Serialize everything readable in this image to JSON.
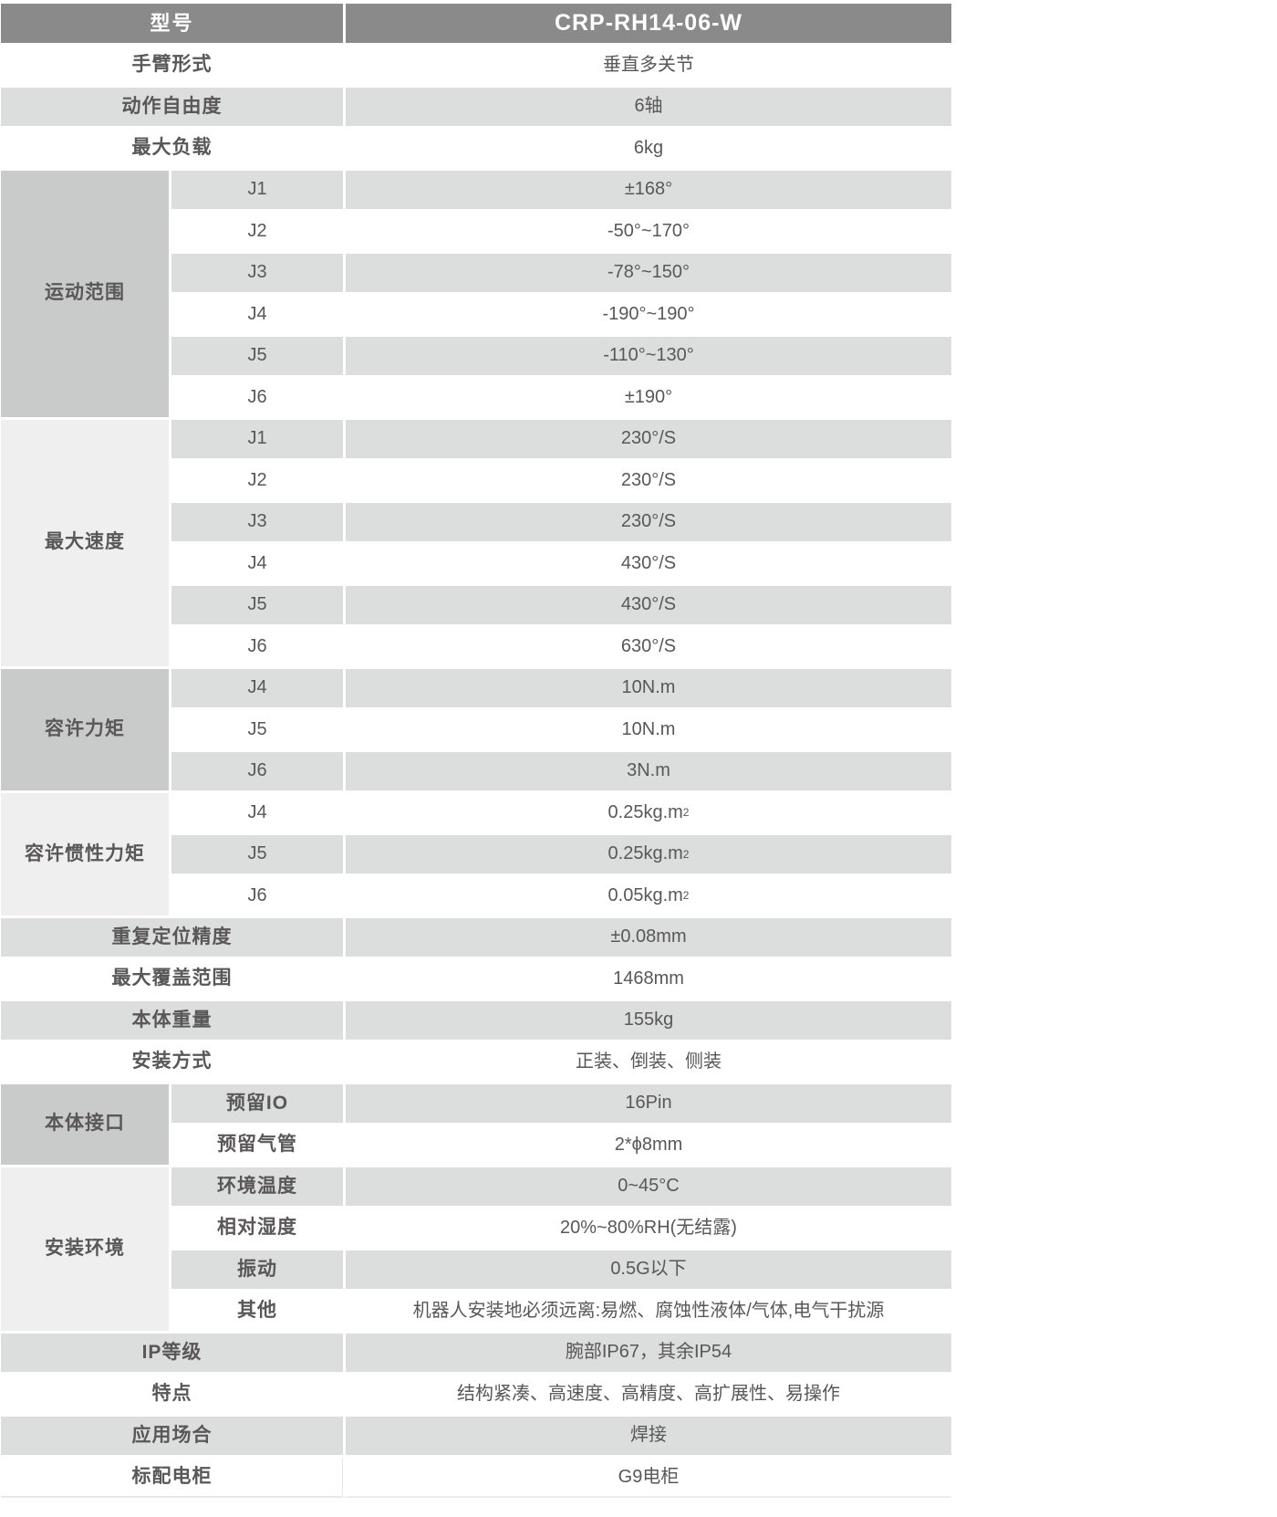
{
  "table": {
    "header": {
      "label": "型号",
      "value": "CRP-RH14-06-W"
    },
    "colors": {
      "header_bg": "#8a8a8a",
      "header_text": "#ffffff",
      "zebra_gray": "#dcdddd",
      "zebra_white": "#ffffff",
      "section_dark": "#c9caca",
      "section_light": "#efefef",
      "body_text": "#595757"
    },
    "rows": [
      {
        "type": "simple",
        "label": "手臂形式",
        "value": "垂直多关节"
      },
      {
        "type": "simple",
        "label": "动作自由度",
        "value": "6轴"
      },
      {
        "type": "simple",
        "label": "最大负载",
        "value": "6kg"
      },
      {
        "type": "section",
        "label": "运动范围",
        "shade": "dark",
        "subrows": [
          {
            "sub": "J1",
            "value": "±168°"
          },
          {
            "sub": "J2",
            "value": "-50°~170°"
          },
          {
            "sub": "J3",
            "value": "-78°~150°"
          },
          {
            "sub": "J4",
            "value": "-190°~190°"
          },
          {
            "sub": "J5",
            "value": "-110°~130°"
          },
          {
            "sub": "J6",
            "value": "±190°"
          }
        ]
      },
      {
        "type": "section",
        "label": "最大速度",
        "shade": "light",
        "subrows": [
          {
            "sub": "J1",
            "value": "230°/S"
          },
          {
            "sub": "J2",
            "value": "230°/S"
          },
          {
            "sub": "J3",
            "value": "230°/S"
          },
          {
            "sub": "J4",
            "value": "430°/S"
          },
          {
            "sub": "J5",
            "value": "430°/S"
          },
          {
            "sub": "J6",
            "value": "630°/S"
          }
        ]
      },
      {
        "type": "section",
        "label": "容许力矩",
        "shade": "dark",
        "subrows": [
          {
            "sub": "J4",
            "value": "10N.m"
          },
          {
            "sub": "J5",
            "value": "10N.m"
          },
          {
            "sub": "J6",
            "value": "3N.m"
          }
        ]
      },
      {
        "type": "section",
        "label": "容许惯性力矩",
        "shade": "light",
        "subrows": [
          {
            "sub": "J4",
            "value": "0.25kg.m",
            "sup": "2"
          },
          {
            "sub": "J5",
            "value": "0.25kg.m",
            "sup": "2"
          },
          {
            "sub": "J6",
            "value": "0.05kg.m",
            "sup": "2"
          }
        ]
      },
      {
        "type": "simple",
        "label": "重复定位精度",
        "value": "±0.08mm"
      },
      {
        "type": "simple",
        "label": "最大覆盖范围",
        "value": "1468mm"
      },
      {
        "type": "simple",
        "label": "本体重量",
        "value": "155kg"
      },
      {
        "type": "simple",
        "label": "安装方式",
        "value": "正装、倒装、侧装"
      },
      {
        "type": "section",
        "label": "本体接口",
        "shade": "dark",
        "subrows": [
          {
            "sub": "预留IO",
            "value": "16Pin"
          },
          {
            "sub": "预留气管",
            "value": "2*ϕ8mm"
          }
        ]
      },
      {
        "type": "section",
        "label": "安装环境",
        "shade": "light",
        "subrows": [
          {
            "sub": "环境温度",
            "value": "0~45°C"
          },
          {
            "sub": "相对湿度",
            "value": "20%~80%RH(无结露)"
          },
          {
            "sub": "振动",
            "value": "0.5G以下"
          },
          {
            "sub": "其他",
            "value": "机器人安装地必须远离:易燃、腐蚀性液体/气体,电气干扰源"
          }
        ]
      },
      {
        "type": "simple",
        "label": "IP等级",
        "value": "腕部IP67，其余IP54"
      },
      {
        "type": "simple",
        "label": "特点",
        "value": "结构紧凑、高速度、高精度、高扩展性、易操作"
      },
      {
        "type": "simple",
        "label": "应用场合",
        "value": "焊接"
      },
      {
        "type": "simple",
        "label": "标配电柜",
        "value": "G9电柜"
      }
    ]
  }
}
